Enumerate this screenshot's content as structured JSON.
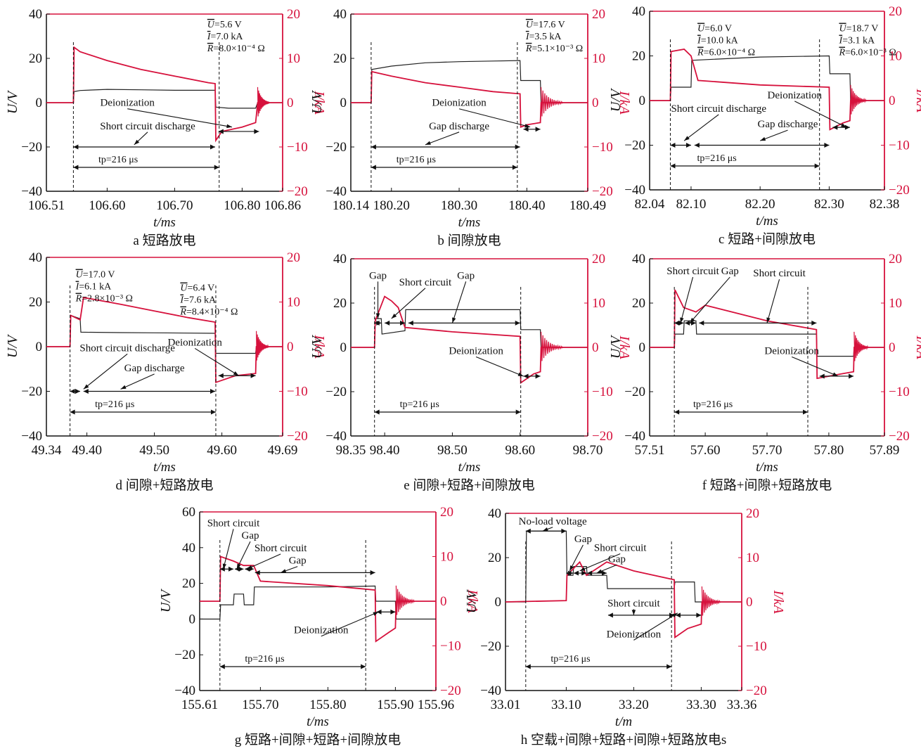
{
  "colors": {
    "voltage": "#222222",
    "current": "#d6113c",
    "right_axis": "#d6113c",
    "annotation": "#111111"
  },
  "chart_data": [
    {
      "type": "line",
      "panel": "a",
      "caption": "a  短路放电",
      "xlabel": "t/ms",
      "ylabel_left": "U/V",
      "ylabel_right": "I/kA",
      "xlim": [
        106.51,
        106.86
      ],
      "xticks": [
        "106.51",
        "106.60",
        "106.70",
        "106.80",
        "106.86"
      ],
      "ylim_left": [
        -40,
        40
      ],
      "yticks_left": [
        "40",
        "20",
        "0",
        "−20",
        "−40"
      ],
      "ylim_right": [
        -20,
        20
      ],
      "yticks_right": [
        "20",
        "10",
        "0",
        "−10",
        "−20"
      ],
      "series": [
        {
          "axis": "U",
          "x": [
            106.51,
            106.55,
            106.551,
            106.56,
            106.6,
            106.65,
            106.7,
            106.75,
            106.76,
            106.761,
            106.78,
            106.8,
            106.82,
            106.823,
            106.86
          ],
          "y": [
            0,
            0,
            5.0,
            5.5,
            6.0,
            5.8,
            5.6,
            5.6,
            5.6,
            -2.0,
            -2.5,
            -2.5,
            -2.5,
            0,
            0
          ]
        },
        {
          "axis": "I",
          "x": [
            106.51,
            106.55,
            106.551,
            106.56,
            106.6,
            106.65,
            106.7,
            106.75,
            106.76,
            106.761,
            106.77,
            106.8,
            106.82,
            106.823,
            106.86
          ],
          "y": [
            0,
            0,
            12.5,
            11.5,
            9.5,
            7.5,
            6.0,
            4.5,
            4.3,
            -8.5,
            -6.5,
            -5.5,
            -4.5,
            0,
            0
          ]
        }
      ],
      "tp_label": "tp=216 μs",
      "params": [
        {
          "U": "=5.6 V",
          "I": "=7.0 kA",
          "R": "=8.0×10⁻⁴ Ω"
        }
      ],
      "annotations": [
        "Deionization",
        "Short circuit discharge"
      ]
    },
    {
      "type": "line",
      "panel": "b",
      "caption": "b  间隙放电",
      "xlabel": "t/ms",
      "ylabel_left": "U/V",
      "ylabel_right": "I/kA",
      "xlim": [
        180.14,
        180.49
      ],
      "xticks": [
        "180.14",
        "180.20",
        "180.30",
        "180.40",
        "180.49"
      ],
      "ylim_left": [
        -40,
        40
      ],
      "yticks_left": [
        "40",
        "20",
        "0",
        "−20",
        "−40"
      ],
      "ylim_right": [
        -20,
        20
      ],
      "yticks_right": [
        "20",
        "10",
        "0",
        "−10",
        "−20"
      ],
      "series": [
        {
          "axis": "U",
          "x": [
            180.14,
            180.17,
            180.171,
            180.2,
            180.25,
            180.3,
            180.35,
            180.39,
            180.391,
            180.42,
            180.421,
            180.49
          ],
          "y": [
            0,
            0,
            15.0,
            16.5,
            18.0,
            18.5,
            18.8,
            19.0,
            10.0,
            10.0,
            0,
            0
          ]
        },
        {
          "axis": "I",
          "x": [
            180.14,
            180.17,
            180.171,
            180.2,
            180.25,
            180.3,
            180.35,
            180.39,
            180.391,
            180.4,
            180.42,
            180.421,
            180.49
          ],
          "y": [
            0,
            0,
            7.0,
            6.0,
            4.5,
            3.5,
            2.5,
            2.0,
            -5.5,
            -5.0,
            -4.5,
            0,
            0
          ]
        }
      ],
      "tp_label": "tp=216 μs",
      "params": [
        {
          "U": "=17.6 V",
          "I": "=3.5 kA",
          "R": "=5.1×10⁻³ Ω"
        }
      ],
      "annotations": [
        "Deionization",
        "Gap discharge"
      ]
    },
    {
      "type": "line",
      "panel": "c",
      "caption": "c  短路+间隙放电",
      "xlabel": "t/ms",
      "ylabel_left": "U/V",
      "ylabel_right": "I/kA",
      "xlim": [
        82.04,
        82.38
      ],
      "xticks": [
        "82.04",
        "82.10",
        "82.20",
        "82.30",
        "82.38"
      ],
      "ylim_left": [
        -40,
        40
      ],
      "yticks_left": [
        "40",
        "20",
        "0",
        "−20",
        "−40"
      ],
      "ylim_right": [
        -20,
        20
      ],
      "yticks_right": [
        "20",
        "10",
        "0",
        "−10",
        "−20"
      ],
      "series": [
        {
          "axis": "U",
          "x": [
            82.04,
            82.07,
            82.071,
            82.1,
            82.101,
            82.2,
            82.3,
            82.301,
            82.33,
            82.331,
            82.38
          ],
          "y": [
            0,
            0,
            6.0,
            6.0,
            18.0,
            19.5,
            20.0,
            12.0,
            12.0,
            0,
            0
          ]
        },
        {
          "axis": "I",
          "x": [
            82.04,
            82.07,
            82.071,
            82.09,
            82.1,
            82.11,
            82.2,
            82.3,
            82.301,
            82.32,
            82.33,
            82.331,
            82.38
          ],
          "y": [
            0,
            0,
            11.0,
            11.5,
            10.0,
            4.5,
            3.5,
            3.0,
            -6.5,
            -5.0,
            -4.5,
            0,
            0
          ]
        }
      ],
      "tp_label": "tp=216 μs",
      "params": [
        {
          "U": "=6.0 V",
          "I": "=10.0 kA",
          "R": "=6.0×10⁻⁴ Ω"
        },
        {
          "U": "=18.7 V",
          "I": "=3.1 kA",
          "R": "=6.0×10⁻³ Ω"
        }
      ],
      "annotations": [
        "Deionization",
        "Short circuit discharge",
        "Gap discharge"
      ]
    },
    {
      "type": "line",
      "panel": "d",
      "caption": "d  间隙+短路放电",
      "xlabel": "t/ms",
      "ylabel_left": "U/V",
      "ylabel_right": "I/kA",
      "xlim": [
        49.34,
        49.69
      ],
      "xticks": [
        "49.34",
        "49.40",
        "49.50",
        "49.60",
        "49.69"
      ],
      "ylim_left": [
        -40,
        40
      ],
      "yticks_left": [
        "40",
        "20",
        "0",
        "−20",
        "−40"
      ],
      "ylim_right": [
        -20,
        20
      ],
      "yticks_right": [
        "20",
        "10",
        "0",
        "−10",
        "−20"
      ],
      "series": [
        {
          "axis": "U",
          "x": [
            49.34,
            49.375,
            49.376,
            49.39,
            49.391,
            49.45,
            49.5,
            49.59,
            49.591,
            49.65,
            49.651,
            49.69
          ],
          "y": [
            0,
            0,
            14.0,
            12.5,
            6.5,
            6.3,
            6.2,
            6.0,
            -3.0,
            -3.0,
            0,
            0
          ]
        },
        {
          "axis": "I",
          "x": [
            49.34,
            49.375,
            49.376,
            49.39,
            49.395,
            49.45,
            49.5,
            49.55,
            49.59,
            49.591,
            49.62,
            49.65,
            49.651,
            49.69
          ],
          "y": [
            0,
            0,
            7.0,
            6.0,
            11.0,
            9.5,
            8.0,
            6.5,
            5.5,
            -8.0,
            -6.5,
            -6.0,
            0,
            0
          ]
        }
      ],
      "tp_label": "tp=216 μs",
      "params": [
        {
          "U": "=17.0 V",
          "I": "=6.1 kA",
          "R": "=2.8×10⁻³ Ω"
        },
        {
          "U": "=6.4 V",
          "I": "=7.6 kA",
          "R": "=8.4×10⁻⁴ Ω"
        }
      ],
      "annotations": [
        "Short circuit discharge",
        "Deionization",
        "Gap discharge"
      ]
    },
    {
      "type": "line",
      "panel": "e",
      "caption": "e  间隙+短路+间隙放电",
      "xlabel": "t/ms",
      "ylabel_left": "U/V",
      "ylabel_right": "I/kA",
      "xlim": [
        98.35,
        98.7
      ],
      "xticks": [
        "98.35",
        "98.40",
        "98.50",
        "98.60",
        "98.70"
      ],
      "ylim_left": [
        -40,
        40
      ],
      "yticks_left": [
        "40",
        "20",
        "0",
        "−20",
        "−40"
      ],
      "ylim_right": [
        -20,
        20
      ],
      "yticks_right": [
        "20",
        "10",
        "0",
        "−10",
        "−20"
      ],
      "series": [
        {
          "axis": "U",
          "x": [
            98.35,
            98.385,
            98.386,
            98.395,
            98.396,
            98.43,
            98.431,
            98.5,
            98.6,
            98.601,
            98.63,
            98.631,
            98.7
          ],
          "y": [
            0,
            0,
            13.0,
            13.0,
            6.0,
            7.5,
            17.0,
            17.0,
            17.0,
            8.0,
            8.0,
            0,
            0
          ]
        },
        {
          "axis": "I",
          "x": [
            98.35,
            98.385,
            98.386,
            98.4,
            98.41,
            98.42,
            98.43,
            98.5,
            98.6,
            98.601,
            98.62,
            98.63,
            98.631,
            98.7
          ],
          "y": [
            0,
            0,
            6.0,
            11.5,
            10.5,
            9.0,
            4.5,
            3.5,
            2.5,
            -8.0,
            -6.0,
            -5.5,
            0,
            0
          ]
        }
      ],
      "tp_label": "tp=216 μs",
      "params": [],
      "annotations": [
        "Gap",
        "Short circuit",
        "Gap",
        "Deionization"
      ]
    },
    {
      "type": "line",
      "panel": "f",
      "caption": "f  短路+间隙+短路放电",
      "xlabel": "t/ms",
      "ylabel_left": "U/V",
      "ylabel_right": "I/kA",
      "xlim": [
        57.51,
        57.89
      ],
      "xticks": [
        "57.51",
        "57.60",
        "57.70",
        "57.80",
        "57.89"
      ],
      "ylim_left": [
        -40,
        40
      ],
      "yticks_left": [
        "40",
        "20",
        "0",
        "−20",
        "−40"
      ],
      "ylim_right": [
        -20,
        20
      ],
      "yticks_right": [
        "20",
        "10",
        "0",
        "−10",
        "−20"
      ],
      "series": [
        {
          "axis": "U",
          "x": [
            57.51,
            57.55,
            57.551,
            57.565,
            57.566,
            57.585,
            57.586,
            57.7,
            57.78,
            57.781,
            57.84,
            57.841,
            57.89
          ],
          "y": [
            0,
            0,
            6.0,
            6.0,
            12.0,
            12.0,
            6.0,
            6.0,
            6.0,
            -4.0,
            -4.0,
            0,
            0
          ]
        },
        {
          "axis": "I",
          "x": [
            57.51,
            57.55,
            57.551,
            57.565,
            57.585,
            57.6,
            57.7,
            57.78,
            57.781,
            57.82,
            57.84,
            57.841,
            57.89
          ],
          "y": [
            0,
            0,
            13.0,
            9.0,
            8.0,
            9.5,
            6.0,
            4.0,
            -7.0,
            -6.0,
            -5.5,
            0,
            0
          ]
        }
      ],
      "tp_label": "tp=216 μs",
      "params": [],
      "annotations": [
        "Short circuit",
        "Gap",
        "Short circuit",
        "Deionization"
      ]
    },
    {
      "type": "line",
      "panel": "g",
      "caption": "g  短路+间隙+短路+间隙放电",
      "xlabel": "t/ms",
      "ylabel_left": "U/V",
      "ylabel_right": "I/kA",
      "xlim": [
        155.61,
        155.96
      ],
      "xticks": [
        "155.61",
        "155.70",
        "155.80",
        "155.90",
        "155.96"
      ],
      "ylim_left": [
        -40,
        60
      ],
      "yticks_left": [
        "60",
        "40",
        "20",
        "0",
        "−20",
        "−40"
      ],
      "ylim_right": [
        -20,
        20
      ],
      "yticks_right": [
        "20",
        "10",
        "0",
        "−10",
        "−20"
      ],
      "series": [
        {
          "axis": "U",
          "x": [
            155.61,
            155.64,
            155.641,
            155.66,
            155.661,
            155.675,
            155.676,
            155.69,
            155.691,
            155.8,
            155.87,
            155.871,
            155.9,
            155.901,
            155.96
          ],
          "y": [
            0,
            0,
            8.0,
            8.0,
            14.0,
            14.0,
            8.0,
            8.0,
            18.0,
            18.0,
            18.5,
            10.0,
            10.0,
            0,
            0
          ]
        },
        {
          "axis": "I",
          "x": [
            155.61,
            155.64,
            155.641,
            155.66,
            155.675,
            155.69,
            155.7,
            155.8,
            155.87,
            155.871,
            155.89,
            155.9,
            155.901,
            155.96
          ],
          "y": [
            0,
            0,
            10.0,
            9.0,
            8.0,
            8.0,
            4.5,
            3.5,
            2.5,
            -9.0,
            -7.0,
            -6.0,
            0,
            0
          ]
        }
      ],
      "tp_label": "tp=216 μs",
      "params": [],
      "annotations": [
        "Short circuit",
        "Gap",
        "Short circuit",
        "Gap",
        "Deionization"
      ]
    },
    {
      "type": "line",
      "panel": "h",
      "caption": "h  空载+间隙+短路+间隙+短路放电s",
      "xlabel": "t/m",
      "ylabel_left": "U/V",
      "ylabel_right": "I/kA",
      "xlim": [
        33.01,
        33.36
      ],
      "xticks": [
        "33.01",
        "33.10",
        "33.20",
        "33.30",
        "33.36"
      ],
      "ylim_left": [
        -40,
        40
      ],
      "yticks_left": [
        "40",
        "20",
        "0",
        "−20",
        "−40"
      ],
      "ylim_right": [
        -20,
        20
      ],
      "yticks_right": [
        "20",
        "10",
        "0",
        "−10",
        "−20"
      ],
      "series": [
        {
          "axis": "U",
          "x": [
            33.01,
            33.04,
            33.041,
            33.1,
            33.101,
            33.11,
            33.111,
            33.13,
            33.131,
            33.16,
            33.161,
            33.26,
            33.261,
            33.29,
            33.291,
            33.36
          ],
          "y": [
            0,
            0,
            32.0,
            32.0,
            12.0,
            12.0,
            16.0,
            16.0,
            12.0,
            12.0,
            6.0,
            6.0,
            9.0,
            9.0,
            0,
            0
          ]
        },
        {
          "axis": "I",
          "x": [
            33.01,
            33.1,
            33.101,
            33.12,
            33.13,
            33.16,
            33.2,
            33.26,
            33.261,
            33.28,
            33.3,
            33.301,
            33.36
          ],
          "y": [
            0,
            0.3,
            6.0,
            9.0,
            6.0,
            9.0,
            7.0,
            5.0,
            -8.0,
            -6.0,
            -5.0,
            0,
            0
          ]
        }
      ],
      "tp_label": "tp=216 μs",
      "params": [],
      "annotations": [
        "No-load voltage",
        "Gap",
        "Short circuit",
        "Gap",
        "Short circuit",
        "Deionization"
      ]
    }
  ]
}
